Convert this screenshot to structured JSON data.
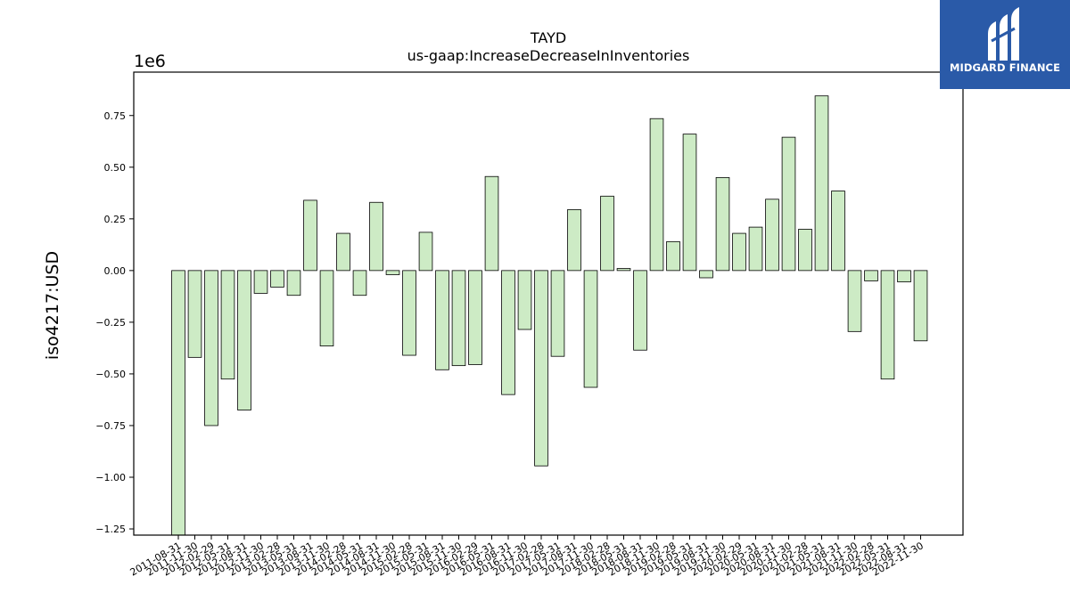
{
  "brand": {
    "name": "MIDGARD FINANCE",
    "logo_icon": "midgard-m-logo-icon",
    "background_color": "#2a5aa8"
  },
  "chart_data": {
    "type": "bar",
    "title": "TAYD",
    "subtitle": "us-gaap:IncreaseDecreaseInInventories",
    "ylabel": "iso4217:USD",
    "xlabel": "",
    "offset_label": "1e6",
    "ylim": [
      -1.28,
      0.96
    ],
    "yticks": [
      -1.25,
      -1.0,
      -0.75,
      -0.5,
      -0.25,
      0.0,
      0.25,
      0.5,
      0.75
    ],
    "ytick_labels": [
      "−1.25",
      "−1.00",
      "−0.75",
      "−0.50",
      "−0.25",
      "0.00",
      "0.25",
      "0.50",
      "0.75"
    ],
    "bar_color": "#cdebc5",
    "edge_color": "#000000",
    "grid": false,
    "categories": [
      "2011-08-31",
      "2011-11-30",
      "2012-02-29",
      "2012-05-31",
      "2012-08-31",
      "2012-11-30",
      "2013-02-28",
      "2013-05-31",
      "2013-08-31",
      "2013-11-30",
      "2014-02-28",
      "2014-05-31",
      "2014-08-31",
      "2014-11-30",
      "2015-02-28",
      "2015-05-31",
      "2015-08-31",
      "2015-11-30",
      "2016-02-29",
      "2016-05-31",
      "2016-08-31",
      "2016-11-30",
      "2017-02-28",
      "2017-05-31",
      "2017-08-31",
      "2017-11-30",
      "2018-02-28",
      "2018-05-31",
      "2018-08-31",
      "2018-11-30",
      "2019-02-28",
      "2019-05-31",
      "2019-08-31",
      "2019-11-30",
      "2020-02-29",
      "2020-05-31",
      "2020-08-31",
      "2020-11-30",
      "2021-02-28",
      "2021-05-31",
      "2021-08-31",
      "2021-11-30",
      "2022-02-28",
      "2022-05-31",
      "2022-08-31",
      "2022-11-30"
    ],
    "values": [
      -1.28,
      -0.42,
      -0.75,
      -0.525,
      -0.675,
      -0.11,
      -0.08,
      -0.12,
      0.34,
      -0.365,
      0.18,
      -0.12,
      0.33,
      -0.02,
      -0.41,
      0.185,
      -0.48,
      -0.46,
      -0.455,
      0.455,
      -0.6,
      -0.285,
      -0.945,
      -0.415,
      0.295,
      -0.565,
      0.36,
      0.01,
      -0.385,
      0.735,
      0.14,
      0.66,
      -0.035,
      0.45,
      0.18,
      0.21,
      0.345,
      0.645,
      0.2,
      0.845,
      0.385,
      -0.295,
      -0.05,
      -0.525,
      -0.055,
      -0.34
    ]
  }
}
